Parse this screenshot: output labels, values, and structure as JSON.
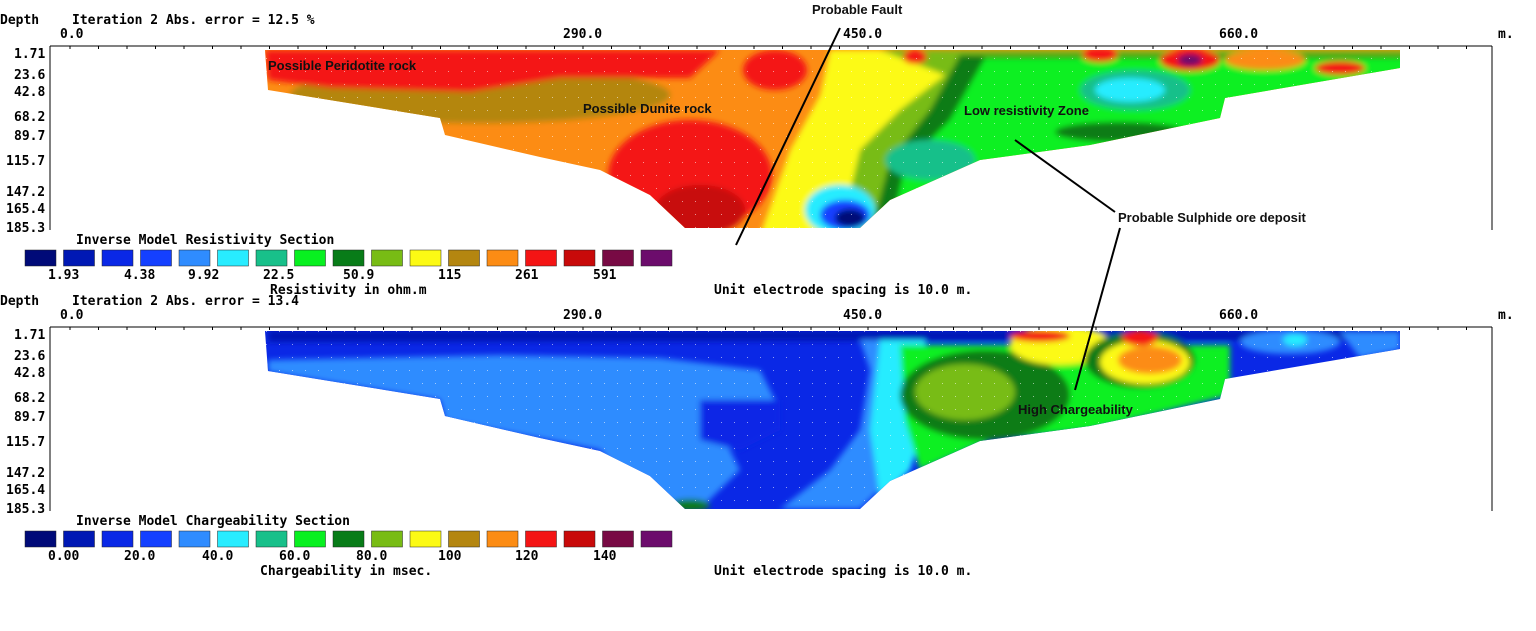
{
  "chart_data": [
    {
      "type": "heatmap",
      "title": "Inverse Model Resistivity Section",
      "header_depth": "Depth",
      "header_iteration": "Iteration 2 Abs. error = 12.5 %",
      "x_ticks": [
        "0.0",
        "290.0",
        "450.0",
        "660.0"
      ],
      "x_unit": "m.",
      "depth_ticks": [
        "1.71",
        "23.6",
        "42.8",
        "68.2",
        "89.7",
        "115.7",
        "147.2",
        "165.4",
        "185.3"
      ],
      "legend_values": [
        "1.93",
        "4.38",
        "9.92",
        "22.5",
        "50.9",
        "115",
        "261",
        "591"
      ],
      "legend_unit": "Resistivity in ohm.m",
      "footer": "Unit electrode spacing is 10.0 m.",
      "annotations": [
        "Possible Peridotite rock",
        "Possible Dunite rock",
        "Low resistivity Zone"
      ]
    },
    {
      "type": "heatmap",
      "title": "Inverse Model Chargeability Section",
      "header_depth": "Depth",
      "header_iteration": "Iteration 2 Abs. error = 13.4",
      "x_ticks": [
        "0.0",
        "290.0",
        "450.0",
        "660.0"
      ],
      "x_unit": "m.",
      "depth_ticks": [
        "1.71",
        "23.6",
        "42.8",
        "68.2",
        "89.7",
        "115.7",
        "147.2",
        "165.4",
        "185.3"
      ],
      "legend_values": [
        "0.00",
        "20.0",
        "40.0",
        "60.0",
        "80.0",
        "100",
        "120",
        "140"
      ],
      "legend_unit": "Chargeability in msec.",
      "footer": "Unit electrode spacing is 10.0 m.",
      "annotations": [
        "High Chargeability"
      ]
    }
  ],
  "callouts": {
    "fault": "Probable Fault",
    "sulphide": "Probable Sulphide ore deposit"
  },
  "palette": [
    "#000a78",
    "#0018b4",
    "#0a28e6",
    "#1440ff",
    "#2f8cff",
    "#28ecff",
    "#18c08a",
    "#08f020",
    "#087c18",
    "#78bc14",
    "#fcfa14",
    "#b48610",
    "#fc8c14",
    "#f41414",
    "#c80a0a",
    "#780a44",
    "#6c0c6c"
  ]
}
